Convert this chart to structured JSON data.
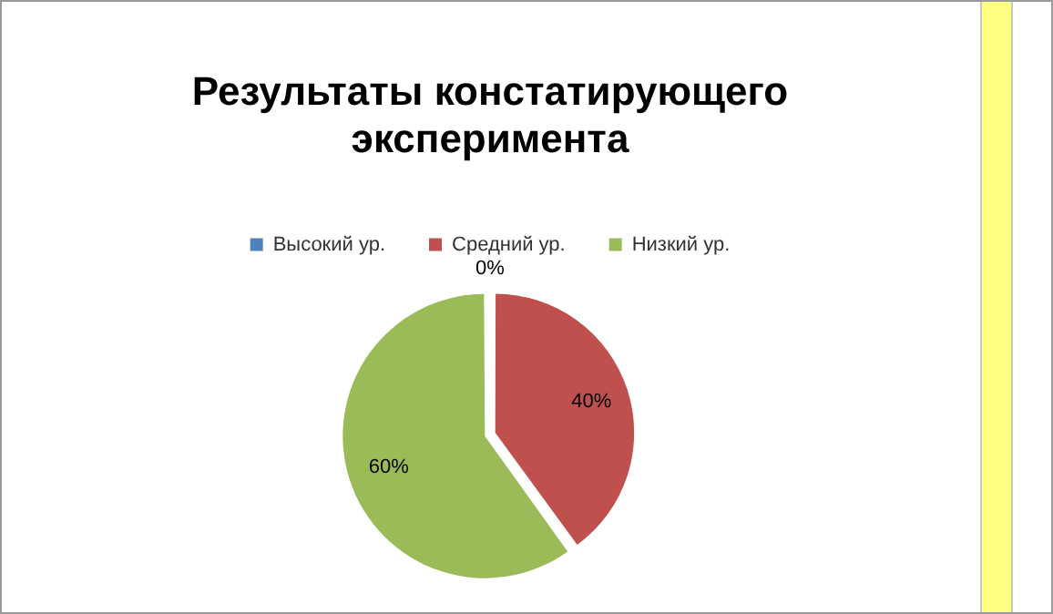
{
  "chart_data": {
    "type": "pie",
    "title": "Результаты констатирующего эксперимента",
    "categories": [
      "Высокий ур.",
      "Средний ур.",
      "Низкий ур."
    ],
    "values": [
      0,
      40,
      60
    ],
    "colors": [
      "#4f81bd",
      "#c0504d",
      "#9bbb59"
    ],
    "value_labels": [
      "0%",
      "40%",
      "60%"
    ],
    "legend": "top"
  }
}
